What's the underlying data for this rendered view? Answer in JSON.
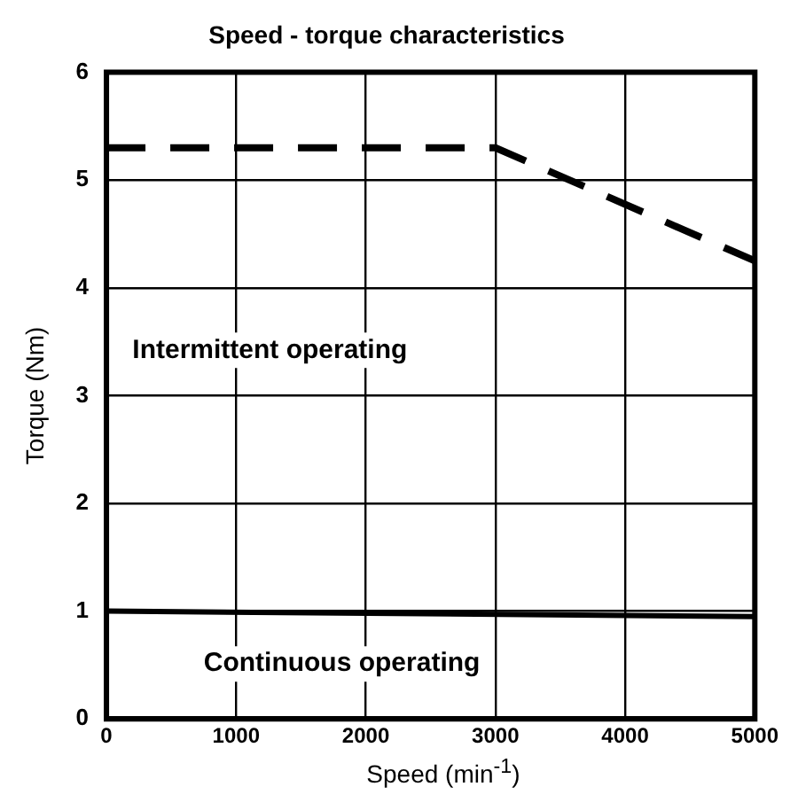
{
  "chart_data": {
    "type": "line",
    "title": "Speed - torque characteristics",
    "xlabel": "Speed (min$^{-1}$)",
    "ylabel": "Torque (Nm)",
    "series": [
      {
        "color": "#000000",
        "line_style": "dashed",
        "x": [
          0,
          3000,
          5000
        ],
        "values": [
          5.3,
          5.3,
          4.25
        ]
      },
      {
        "color": "#000000",
        "line_style": "solid",
        "x": [
          0,
          5000
        ],
        "values": [
          1.0,
          0.95
        ]
      }
    ],
    "annotations": [
      "Intermittent operating",
      "Continuous operating"
    ],
    "xlim": [
      0,
      5000
    ],
    "xticks": [
      0,
      1000,
      2000,
      3000,
      4000,
      5000
    ],
    "ylim": [
      0,
      6
    ],
    "yticks": [
      0,
      1,
      2,
      3,
      4,
      5,
      6
    ],
    "grid": true,
    "legend": false,
    "marker": "none"
  }
}
